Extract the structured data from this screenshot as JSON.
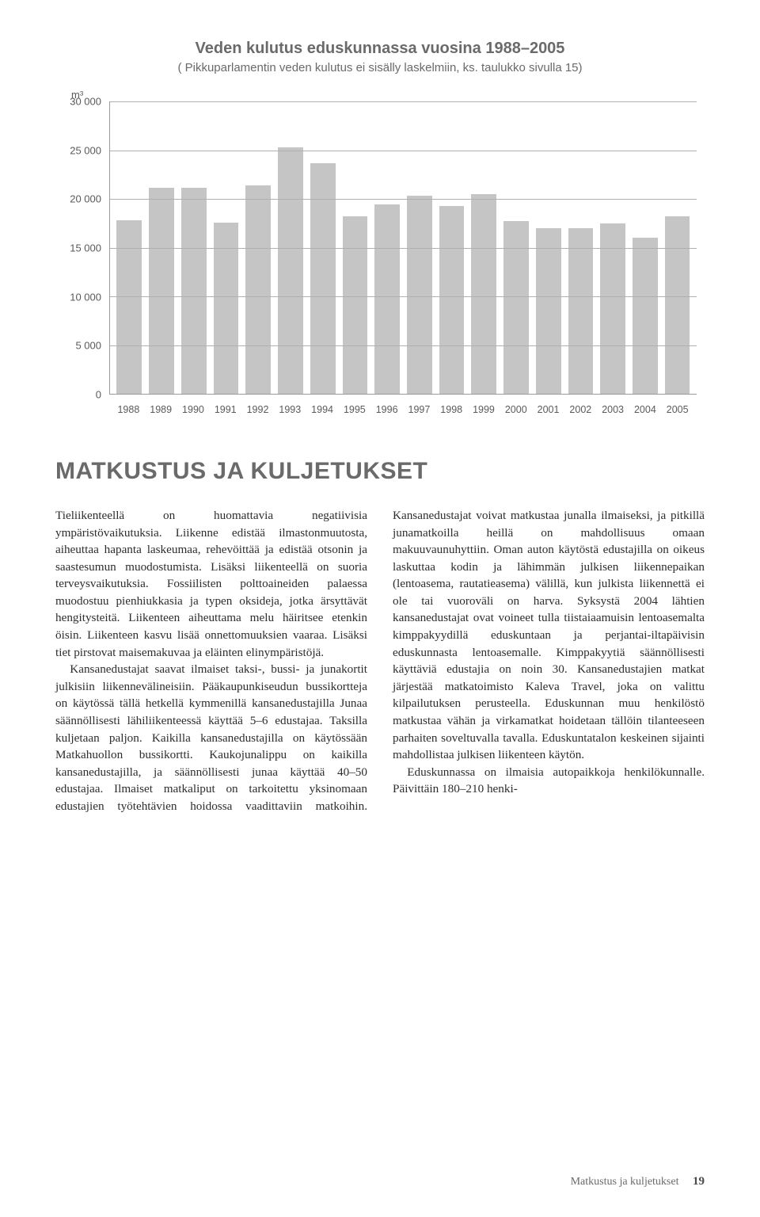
{
  "chart": {
    "title": "Veden kulutus eduskunnassa vuosina 1988–2005",
    "subtitle": "( Pikkuparlamentin veden kulutus ei sisälly laskelmiin, ks. taulukko sivulla 15)",
    "y_unit": "m³",
    "categories": [
      "1988",
      "1989",
      "1990",
      "1991",
      "1992",
      "1993",
      "1994",
      "1995",
      "1996",
      "1997",
      "1998",
      "1999",
      "2000",
      "2001",
      "2002",
      "2003",
      "2004",
      "2005"
    ],
    "values": [
      17800,
      21100,
      21100,
      17600,
      21400,
      25300,
      23700,
      18200,
      19400,
      20300,
      19300,
      20500,
      17700,
      17000,
      17000,
      17500,
      16000,
      18200
    ],
    "ymax": 30000,
    "ytick_step": 5000,
    "yticks": [
      "30 000",
      "25 000",
      "20 000",
      "15 000",
      "10 000",
      "5 000",
      "0"
    ],
    "bar_color": "#c5c5c5",
    "grid_color": "#b0b0b0",
    "axis_color": "#9a9a9a",
    "tick_font_size": 13
  },
  "section": {
    "heading": "MATKUSTUS JA KULJETUKSET"
  },
  "body": {
    "p1": "Tieliikenteellä on huomattavia negatiivisia ympäristövaikutuksia. Liikenne edistää ilmastonmuutosta, aiheuttaa hapanta laskeumaa, rehevöittää ja edistää otsonin ja saastesumun muodostumista. Lisäksi liikenteellä on suoria terveysvaikutuksia. Fossiilisten polttoaineiden palaessa muodostuu pienhiukkasia ja typen oksideja, jotka ärsyttävät hengitysteitä. Liikenteen aiheuttama melu häiritsee etenkin öisin. Liikenteen kasvu lisää onnettomuuksien vaaraa. Lisäksi tiet pirstovat maisemakuvaa ja eläinten elinympäristöjä.",
    "p2": "Kansanedustajat saavat ilmaiset taksi-, bussi- ja junakortit julkisiin liikennevälineisiin. Pääkaupunkiseudun bussikortteja on käytössä tällä hetkellä kymmenillä kansanedustajilla Junaa säännöllisesti lähiliikenteessä käyttää 5–6 edustajaa. Taksilla kuljetaan paljon. Kaikilla kansanedustajilla on käytössään Matkahuollon bussikortti. Kaukojunalippu on kaikilla kansanedustajilla, ja säännöllisesti junaa käyttää 40–50 edustajaa. Ilmaiset matkaliput on tarkoitettu yksinomaan edustajien työtehtävien hoidossa vaadittaviin matkoihin. Kansanedustajat voivat matkustaa junalla ilmaiseksi, ja pitkillä junamatkoilla heillä on mahdollisuus omaan makuuvaunuhyttiin. Oman auton käytöstä edustajilla on oikeus laskuttaa kodin ja lähimmän julkisen liikennepaikan (lentoasema, rautatieasema) välillä, kun julkista liikennettä ei ole tai vuoroväli on harva. Syksystä 2004 lähtien kansanedustajat ovat voineet tulla tiistaiaamuisin lentoasemalta kimppakyydillä eduskuntaan ja perjantai-iltapäivisin eduskunnasta lentoasemalle. Kimppakyytiä säännöllisesti käyttäviä edustajia on noin 30. Kansanedustajien matkat järjestää matkatoimisto Kaleva Travel, joka on valittu kilpailutuksen perusteella. Eduskunnan muu henkilöstö matkustaa vähän ja virkamatkat hoidetaan tällöin tilanteeseen parhaiten soveltuvalla tavalla. Eduskuntatalon keskeinen sijainti mahdollistaa julkisen liikenteen käytön.",
    "p3": "Eduskunnassa on ilmaisia autopaikkoja henkilökunnalle. Päivittäin 180–210 henki-"
  },
  "footer": {
    "section": "Matkustus ja kuljetukset",
    "page": "19"
  }
}
